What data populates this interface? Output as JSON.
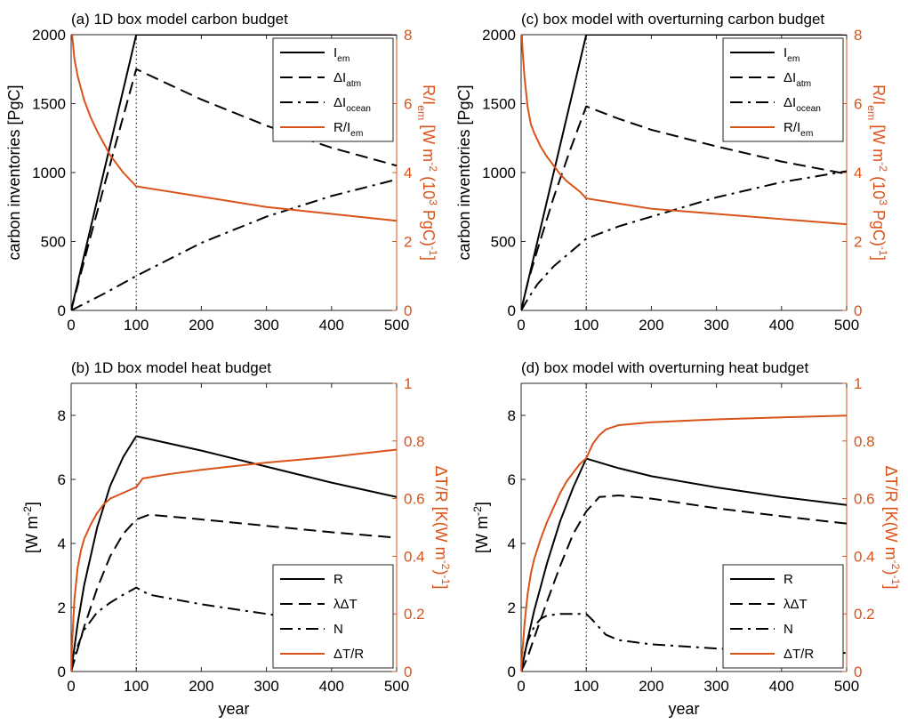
{
  "colors": {
    "black": "#000000",
    "orange": "#d95319"
  },
  "chart_data": [
    {
      "id": "a",
      "type": "line",
      "title": "(a) 1D box model carbon budget",
      "xlabel": "",
      "ylabel": "carbon inventories [PgC]",
      "y2label": "R/I_em [W m^-2 (10^3 PgC)^-1]",
      "xlim": [
        0,
        500
      ],
      "ylim": [
        0,
        2000
      ],
      "y2lim": [
        0,
        8
      ],
      "xticks": [
        "0",
        "100",
        "200",
        "300",
        "400",
        "500"
      ],
      "yticks": [
        "0",
        "500",
        "1000",
        "1500",
        "2000"
      ],
      "y2ticks": [
        "0",
        "2",
        "4",
        "6",
        "8"
      ],
      "vline_x": 100,
      "legend_position": "top-right",
      "series": [
        {
          "name": "I_em",
          "axis": "left",
          "style": "solid",
          "color": "#000000",
          "x": [
            0,
            100,
            500
          ],
          "y": [
            0,
            2000,
            2000
          ]
        },
        {
          "name": "ΔI_atm",
          "axis": "left",
          "style": "dash",
          "color": "#000000",
          "x": [
            0,
            25,
            50,
            75,
            100,
            150,
            200,
            300,
            400,
            500
          ],
          "y": [
            0,
            450,
            890,
            1320,
            1750,
            1640,
            1530,
            1340,
            1180,
            1050
          ]
        },
        {
          "name": "ΔI_ocean",
          "axis": "left",
          "style": "dashdot",
          "color": "#000000",
          "x": [
            0,
            50,
            100,
            200,
            300,
            400,
            500
          ],
          "y": [
            0,
            120,
            250,
            490,
            680,
            830,
            950
          ]
        },
        {
          "name": "R/I_em",
          "axis": "right",
          "style": "solid",
          "color": "#d95319",
          "x": [
            0,
            2,
            5,
            10,
            20,
            30,
            40,
            50,
            60,
            70,
            80,
            90,
            100,
            150,
            200,
            300,
            400,
            500
          ],
          "y": [
            8.5,
            7.9,
            7.3,
            6.8,
            6.1,
            5.6,
            5.2,
            4.85,
            4.5,
            4.25,
            4.0,
            3.8,
            3.6,
            3.45,
            3.3,
            3.0,
            2.8,
            2.6
          ]
        }
      ]
    },
    {
      "id": "b",
      "type": "line",
      "title": "(b) 1D box model heat budget",
      "xlabel": "year",
      "ylabel": "[W m^-2]",
      "y2label": "ΔT/R [K(W m^-2)^-1]",
      "xlim": [
        0,
        500
      ],
      "ylim": [
        0,
        9
      ],
      "y2lim": [
        0,
        1
      ],
      "xticks": [
        "0",
        "100",
        "200",
        "300",
        "400",
        "500"
      ],
      "yticks": [
        "0",
        "2",
        "4",
        "6",
        "8"
      ],
      "y2ticks": [
        "0",
        "0.2",
        "0.4",
        "0.6",
        "0.8",
        "1"
      ],
      "vline_x": 100,
      "legend_position": "bottom-right",
      "series": [
        {
          "name": "R",
          "axis": "left",
          "style": "solid",
          "color": "#000000",
          "x": [
            0,
            10,
            20,
            40,
            60,
            80,
            100,
            200,
            300,
            400,
            500
          ],
          "y": [
            0,
            1.5,
            2.7,
            4.5,
            5.8,
            6.7,
            7.35,
            6.9,
            6.4,
            5.9,
            5.45
          ]
        },
        {
          "name": "λΔT",
          "axis": "left",
          "style": "dash",
          "color": "#000000",
          "x": [
            0,
            10,
            20,
            40,
            60,
            80,
            100,
            120,
            200,
            300,
            400,
            500
          ],
          "y": [
            0,
            0.7,
            1.4,
            2.6,
            3.6,
            4.3,
            4.75,
            4.9,
            4.75,
            4.55,
            4.35,
            4.18
          ]
        },
        {
          "name": "N",
          "axis": "left",
          "style": "dashdot",
          "color": "#000000",
          "x": [
            0,
            10,
            20,
            40,
            60,
            80,
            100,
            120,
            200,
            300,
            400,
            500
          ],
          "y": [
            0,
            0.8,
            1.3,
            1.85,
            2.15,
            2.4,
            2.62,
            2.4,
            2.1,
            1.8,
            1.5,
            1.25
          ]
        },
        {
          "name": "ΔT/R",
          "axis": "right",
          "style": "solid",
          "color": "#d95319",
          "x": [
            0,
            2,
            5,
            10,
            15,
            20,
            30,
            40,
            50,
            60,
            70,
            80,
            90,
            100,
            110,
            150,
            200,
            300,
            400,
            500
          ],
          "y": [
            0,
            0.12,
            0.25,
            0.36,
            0.42,
            0.46,
            0.51,
            0.55,
            0.58,
            0.6,
            0.61,
            0.62,
            0.63,
            0.64,
            0.67,
            0.685,
            0.7,
            0.725,
            0.745,
            0.77
          ]
        }
      ]
    },
    {
      "id": "c",
      "type": "line",
      "title": "(c) box model with overturning carbon budget",
      "xlabel": "",
      "ylabel": "carbon inventories [PgC]",
      "y2label": "R/I_em [W m^-2 (10^3 PgC)^-1]",
      "xlim": [
        0,
        500
      ],
      "ylim": [
        0,
        2000
      ],
      "y2lim": [
        0,
        8
      ],
      "xticks": [
        "0",
        "100",
        "200",
        "300",
        "400",
        "500"
      ],
      "yticks": [
        "0",
        "500",
        "1000",
        "1500",
        "2000"
      ],
      "y2ticks": [
        "0",
        "2",
        "4",
        "6",
        "8"
      ],
      "vline_x": 100,
      "legend_position": "top-right",
      "series": [
        {
          "name": "I_em",
          "axis": "left",
          "style": "solid",
          "color": "#000000",
          "x": [
            0,
            100,
            500
          ],
          "y": [
            0,
            2000,
            2000
          ]
        },
        {
          "name": "ΔI_atm",
          "axis": "left",
          "style": "dash",
          "color": "#000000",
          "x": [
            0,
            10,
            25,
            50,
            75,
            100,
            150,
            200,
            300,
            400,
            500
          ],
          "y": [
            0,
            200,
            440,
            820,
            1160,
            1480,
            1390,
            1310,
            1190,
            1080,
            990
          ]
        },
        {
          "name": "ΔI_ocean",
          "axis": "left",
          "style": "dashdot",
          "color": "#000000",
          "x": [
            0,
            10,
            25,
            50,
            75,
            100,
            150,
            200,
            300,
            400,
            500
          ],
          "y": [
            0,
            80,
            190,
            320,
            420,
            520,
            610,
            680,
            820,
            930,
            1010
          ]
        },
        {
          "name": "R/I_em",
          "axis": "right",
          "style": "solid",
          "color": "#d95319",
          "x": [
            0,
            2,
            5,
            10,
            15,
            20,
            30,
            40,
            50,
            60,
            70,
            80,
            90,
            100,
            150,
            200,
            300,
            400,
            500
          ],
          "y": [
            8.5,
            7.6,
            6.8,
            5.9,
            5.4,
            5.15,
            4.75,
            4.45,
            4.2,
            3.95,
            3.75,
            3.6,
            3.45,
            3.25,
            3.1,
            2.95,
            2.8,
            2.65,
            2.5
          ]
        }
      ]
    },
    {
      "id": "d",
      "type": "line",
      "title": "(d) box model with overturning heat budget",
      "xlabel": "year",
      "ylabel": "[W m^-2]",
      "y2label": "ΔT/R [K(W m^-2)^-1]",
      "xlim": [
        0,
        500
      ],
      "ylim": [
        0,
        9
      ],
      "y2lim": [
        0,
        1
      ],
      "xticks": [
        "0",
        "100",
        "200",
        "300",
        "400",
        "500"
      ],
      "yticks": [
        "0",
        "2",
        "4",
        "6",
        "8"
      ],
      "y2ticks": [
        "0",
        "0.2",
        "0.4",
        "0.6",
        "0.8",
        "1"
      ],
      "vline_x": 100,
      "legend_position": "bottom-right",
      "series": [
        {
          "name": "R",
          "axis": "left",
          "style": "solid",
          "color": "#000000",
          "x": [
            0,
            10,
            20,
            40,
            60,
            80,
            100,
            150,
            200,
            300,
            400,
            500
          ],
          "y": [
            0,
            1.0,
            1.9,
            3.4,
            4.7,
            5.75,
            6.65,
            6.35,
            6.1,
            5.75,
            5.45,
            5.2
          ]
        },
        {
          "name": "λΔT",
          "axis": "left",
          "style": "dash",
          "color": "#000000",
          "x": [
            0,
            10,
            20,
            40,
            60,
            80,
            100,
            120,
            150,
            200,
            300,
            400,
            500
          ],
          "y": [
            0,
            0.45,
            1.05,
            2.2,
            3.3,
            4.3,
            5.0,
            5.45,
            5.5,
            5.4,
            5.1,
            4.85,
            4.62
          ]
        },
        {
          "name": "N",
          "axis": "left",
          "style": "dashdot",
          "color": "#000000",
          "x": [
            0,
            5,
            10,
            20,
            30,
            40,
            60,
            80,
            100,
            110,
            130,
            150,
            200,
            300,
            400,
            500
          ],
          "y": [
            0,
            0.55,
            0.95,
            1.4,
            1.65,
            1.75,
            1.8,
            1.8,
            1.8,
            1.6,
            1.15,
            0.98,
            0.85,
            0.72,
            0.64,
            0.58
          ]
        },
        {
          "name": "ΔT/R",
          "axis": "right",
          "style": "solid",
          "color": "#d95319",
          "x": [
            0,
            2,
            5,
            10,
            15,
            20,
            30,
            40,
            50,
            60,
            70,
            80,
            90,
            100,
            110,
            120,
            130,
            150,
            200,
            300,
            400,
            500
          ],
          "y": [
            0,
            0.07,
            0.16,
            0.27,
            0.34,
            0.39,
            0.46,
            0.52,
            0.57,
            0.62,
            0.66,
            0.69,
            0.72,
            0.74,
            0.79,
            0.82,
            0.84,
            0.855,
            0.865,
            0.875,
            0.882,
            0.888
          ]
        }
      ]
    }
  ]
}
